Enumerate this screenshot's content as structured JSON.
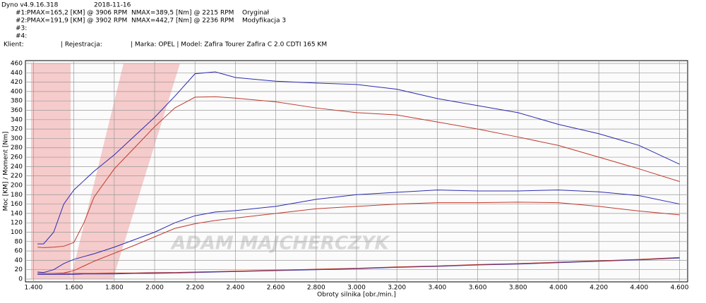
{
  "header": {
    "app": "Dyno v4.9.16.318",
    "date": "2018-11-16",
    "runs": [
      {
        "id": "#1:",
        "power": "PMAX=165,2 [KM] @ 3906 RPM",
        "torque": "NMAX=389,5 [Nm] @ 2215 RPM",
        "label": "Oryginał"
      },
      {
        "id": "#2:",
        "power": "PMAX=191,9 [KM] @ 3902 RPM",
        "torque": "NMAX=442,7 [Nm] @ 2236 RPM",
        "label": "Modyfikacja 3"
      },
      {
        "id": "#3:"
      },
      {
        "id": "#4:"
      }
    ],
    "client": "Klient:",
    "registration": "| Rejestracja:",
    "vehicle": "| Marka: OPEL | Model: Zafira Tourer Zafira C 2.0 CDTI 165 KM",
    "watermark": "ADAM MAJCHERCZYK"
  },
  "chart_data": {
    "type": "line",
    "x_label": "Obroty silnika [obr./min.]",
    "y_label": "Moc [KM] / Moment [Nm]",
    "x": [
      1420,
      1450,
      1500,
      1550,
      1600,
      1650,
      1700,
      1800,
      1900,
      2000,
      2100,
      2200,
      2300,
      2400,
      2600,
      2800,
      3000,
      3200,
      3400,
      3600,
      3800,
      4000,
      4200,
      4400,
      4600
    ],
    "series": [
      {
        "color": "#2b2bb0",
        "values": [
          75,
          75,
          100,
          160,
          190,
          210,
          230,
          265,
          305,
          345,
          390,
          438,
          442,
          430,
          422,
          418,
          415,
          405,
          385,
          370,
          355,
          330,
          310,
          285,
          245
        ]
      },
      {
        "color": "#c0392b",
        "values": [
          68,
          67,
          68,
          70,
          78,
          120,
          175,
          235,
          280,
          325,
          365,
          388,
          389,
          386,
          378,
          365,
          355,
          350,
          335,
          320,
          303,
          285,
          260,
          235,
          208
        ]
      },
      {
        "color": "#2b2bb0",
        "values": [
          15,
          14,
          20,
          33,
          42,
          48,
          54,
          68,
          84,
          100,
          120,
          135,
          143,
          146,
          155,
          170,
          180,
          185,
          190,
          188,
          188,
          190,
          186,
          178,
          160
        ]
      },
      {
        "color": "#c0392b",
        "values": [
          12,
          12,
          12,
          13,
          18,
          28,
          38,
          55,
          72,
          90,
          108,
          118,
          125,
          130,
          140,
          150,
          155,
          160,
          163,
          163,
          164,
          163,
          155,
          145,
          137
        ]
      },
      {
        "color": "#2b2bb0",
        "values": [
          10,
          10,
          10,
          10,
          10,
          11,
          11,
          11,
          12,
          12,
          13,
          14,
          15,
          16,
          18,
          20,
          22,
          25,
          27,
          30,
          32,
          35,
          38,
          41,
          45
        ]
      },
      {
        "color": "#c0392b",
        "values": [
          12,
          12,
          12,
          12,
          12,
          12,
          12,
          13,
          13,
          14,
          14,
          15,
          16,
          17,
          19,
          21,
          23,
          26,
          28,
          31,
          33,
          36,
          39,
          42,
          46
        ]
      }
    ],
    "xlim": [
      1360,
      4640
    ],
    "ylim": [
      -6,
      466
    ],
    "xticks": [
      {
        "value": 1400,
        "label": "1.400"
      },
      {
        "value": 1600,
        "label": "1.600"
      },
      {
        "value": 1800,
        "label": "1.800"
      },
      {
        "value": 2000,
        "label": "2.000"
      },
      {
        "value": 2200,
        "label": "2.200"
      },
      {
        "value": 2400,
        "label": "2.400"
      },
      {
        "value": 2600,
        "label": "2.600"
      },
      {
        "value": 2800,
        "label": "2.800"
      },
      {
        "value": 3000,
        "label": "3.000"
      },
      {
        "value": 3200,
        "label": "3.200"
      },
      {
        "value": 3400,
        "label": "3.400"
      },
      {
        "value": 3600,
        "label": "3.600"
      },
      {
        "value": 3800,
        "label": "3.800"
      },
      {
        "value": 4000,
        "label": "4.000"
      },
      {
        "value": 4200,
        "label": "4.200"
      },
      {
        "value": 4400,
        "label": "4.400"
      },
      {
        "value": 4600,
        "label": "4.600"
      }
    ],
    "yticks": [
      0,
      20,
      40,
      60,
      80,
      100,
      120,
      140,
      160,
      180,
      200,
      220,
      240,
      260,
      280,
      300,
      320,
      340,
      360,
      380,
      400,
      420,
      440,
      460
    ],
    "grid": true
  }
}
